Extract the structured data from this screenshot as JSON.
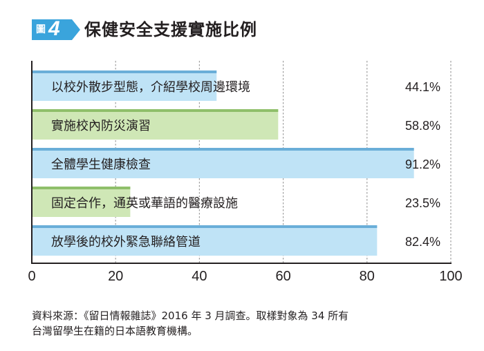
{
  "header": {
    "badge_label": "圖",
    "badge_number": "4",
    "title": "保健安全支援實施比例"
  },
  "chart_data": {
    "type": "bar",
    "orientation": "horizontal",
    "categories": [
      "以校外散步型態，介紹學校周邊環境",
      "實施校內防災演習",
      "全體學生健康檢查",
      "固定合作，通英或華語的醫療設施",
      "放學後的校外緊急聯絡管道"
    ],
    "values": [
      44.1,
      58.8,
      91.2,
      23.5,
      82.4
    ],
    "value_labels": [
      "44.1%",
      "58.8%",
      "91.2%",
      "23.5%",
      "82.4%"
    ],
    "xlim": [
      0,
      100
    ],
    "xticks": [
      0,
      20,
      40,
      60,
      80,
      100
    ],
    "grid": true,
    "colors": {
      "blue_bar": "#bfe3f6",
      "blue_edge": "#6aaed8",
      "green_bar": "#cfe7b6",
      "green_edge": "#8fbf6a",
      "axis": "#231f20",
      "grid": "#9e9e9e"
    },
    "bar_color_pattern": [
      "blue",
      "green",
      "blue",
      "green",
      "blue"
    ]
  },
  "source": {
    "line1": "資料來源：《留日情報雜誌》2016 年 3 月調查。取樣對象為 34 所有",
    "line2": "台灣留學生在籍的日本語教育機構。"
  }
}
